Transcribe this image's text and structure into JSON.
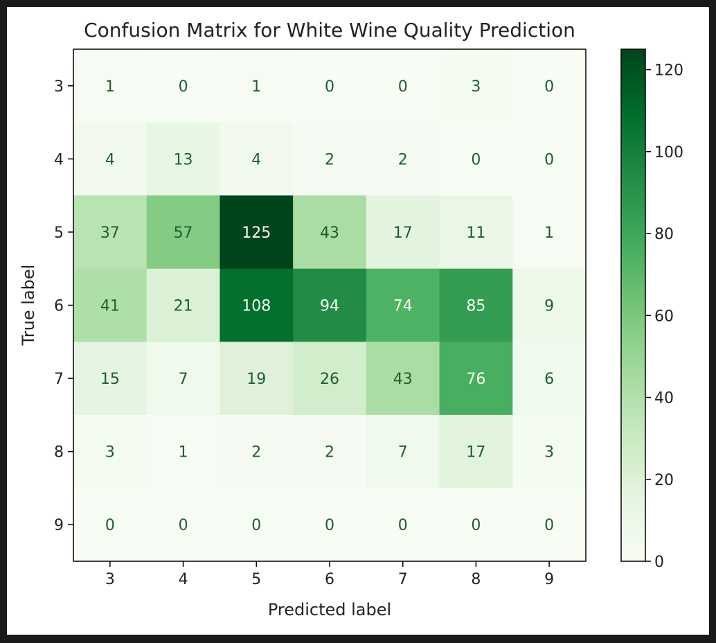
{
  "chart_data": {
    "type": "heatmap",
    "title": "Confusion Matrix for White Wine Quality Prediction",
    "xlabel": "Predicted label",
    "ylabel": "True label",
    "x_categories": [
      "3",
      "4",
      "5",
      "6",
      "7",
      "8",
      "9"
    ],
    "y_categories": [
      "3",
      "4",
      "5",
      "6",
      "7",
      "8",
      "9"
    ],
    "matrix": [
      [
        1,
        0,
        1,
        0,
        0,
        3,
        0
      ],
      [
        4,
        13,
        4,
        2,
        2,
        0,
        0
      ],
      [
        37,
        57,
        125,
        43,
        17,
        11,
        1
      ],
      [
        41,
        21,
        108,
        94,
        74,
        85,
        9
      ],
      [
        15,
        7,
        19,
        26,
        43,
        76,
        6
      ],
      [
        3,
        1,
        2,
        2,
        7,
        17,
        3
      ],
      [
        0,
        0,
        0,
        0,
        0,
        0,
        0
      ]
    ],
    "colormap": "Greens",
    "vmin": 0,
    "vmax": 125,
    "colorbar_ticks": [
      0,
      20,
      40,
      60,
      80,
      100,
      120
    ],
    "colorbar_tick_labels": [
      "0",
      "20",
      "40",
      "60",
      "80",
      "100",
      "120"
    ],
    "colors": {
      "text_dark": "#1f5d30",
      "text_light": "#f7fcf5"
    }
  }
}
